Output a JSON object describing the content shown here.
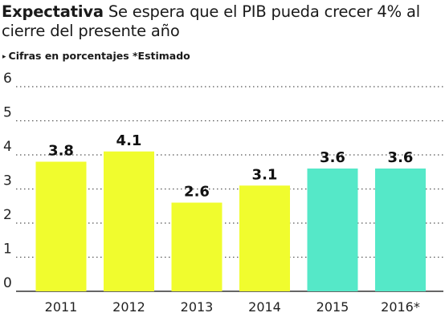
{
  "header": {
    "title_strong": "Expectativa",
    "title_rest": "Se espera que el PIB pueda crecer 4% al cierre del presente año",
    "subtitle": "Cifras en porcentajes *Estimado",
    "subtitle_marker": "▸"
  },
  "chart_data": {
    "type": "bar",
    "title": "Expectativa Se espera que el PIB pueda crecer 4% al cierre del presente año",
    "subtitle": "Cifras en porcentajes *Estimado",
    "xlabel": "",
    "ylabel": "",
    "categories": [
      "2011",
      "2012",
      "2013",
      "2014",
      "2015",
      "2016*"
    ],
    "values": [
      3.8,
      4.1,
      2.6,
      3.1,
      3.6,
      3.6
    ],
    "value_labels": [
      "3.8",
      "4.1",
      "2.6",
      "3.1",
      "3.6",
      "3.6"
    ],
    "bar_colors": [
      "#f0fc2e",
      "#f0fc2e",
      "#f0fc2e",
      "#f0fc2e",
      "#55e8c8",
      "#55e8c8"
    ],
    "yticks": [
      0,
      1,
      2,
      3,
      4,
      5,
      6
    ],
    "ylim": [
      0,
      6
    ],
    "grid": true,
    "grid_style": "dotted",
    "legend": "none"
  }
}
